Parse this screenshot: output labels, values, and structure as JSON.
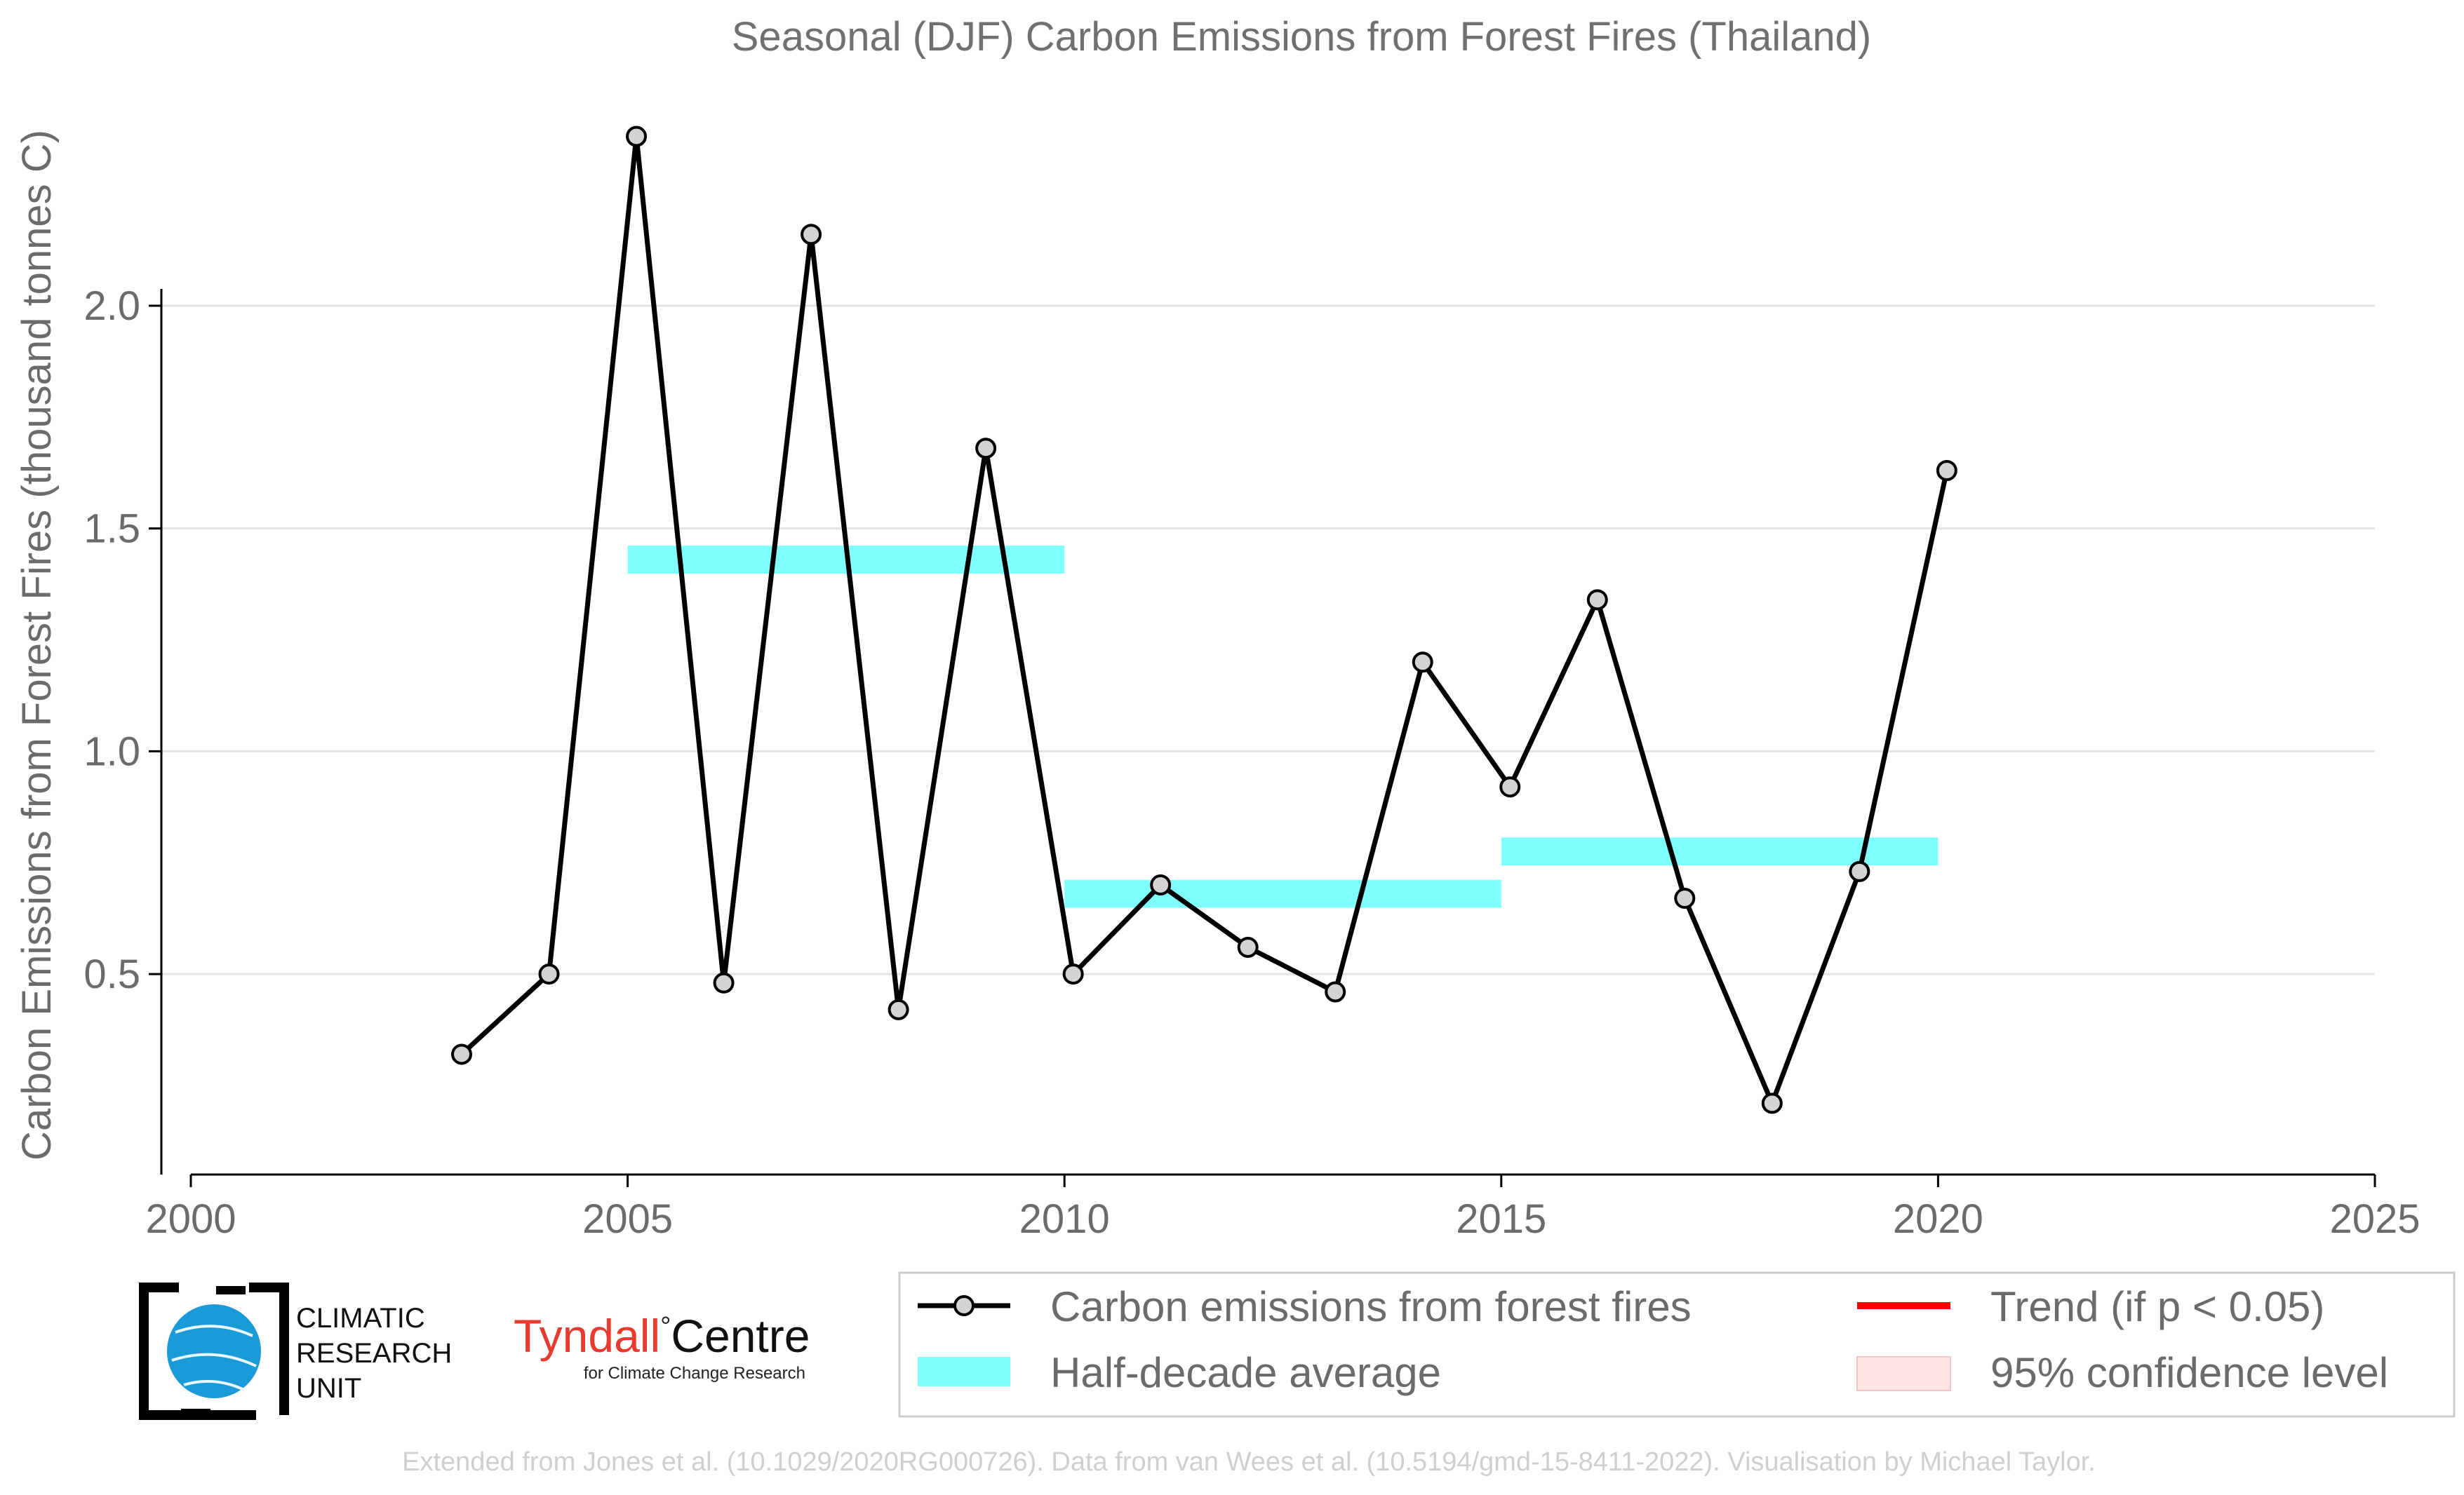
{
  "chart_data": {
    "type": "line",
    "title": "Seasonal (DJF) Carbon Emissions from Forest Fires (Thailand)",
    "xlabel": "",
    "ylabel": "Carbon Emissions from Forest Fires (thousand tonnes C)",
    "xlim": [
      2000,
      2025
    ],
    "ylim": [
      0.05,
      2.45
    ],
    "x_ticks": [
      2000,
      2005,
      2010,
      2015,
      2020,
      2025
    ],
    "y_ticks": [
      0.5,
      1.0,
      1.5,
      2.0
    ],
    "y_tick_labels": [
      "0.5",
      "1.0",
      "1.5",
      "2.0"
    ],
    "grid": true,
    "series": [
      {
        "name": "Carbon emissions from forest fires",
        "color": "#000000",
        "marker_fill": "#d3d3d3",
        "x": [
          2003.1,
          2004.1,
          2005.1,
          2006.1,
          2007.1,
          2008.1,
          2009.1,
          2010.1,
          2011.1,
          2012.1,
          2013.1,
          2014.1,
          2015.1,
          2016.1,
          2017.1,
          2018.1,
          2019.1,
          2020.1
        ],
        "y": [
          0.32,
          0.5,
          2.38,
          0.48,
          2.16,
          0.42,
          1.68,
          0.5,
          0.7,
          0.56,
          0.46,
          1.2,
          0.92,
          1.34,
          0.67,
          0.21,
          0.73,
          1.63
        ]
      }
    ],
    "half_decade_average": {
      "name": "Half-decade average",
      "color": "#80ffff",
      "segments": [
        {
          "x_start": 2005.0,
          "x_end": 2010.0,
          "y": 1.43
        },
        {
          "x_start": 2010.0,
          "x_end": 2015.0,
          "y": 0.68
        },
        {
          "x_start": 2015.0,
          "x_end": 2020.0,
          "y": 0.775
        }
      ]
    },
    "legend": {
      "placement": "bottom",
      "items": [
        {
          "label": "Carbon emissions from forest fires",
          "kind": "line-marker",
          "color": "#000000"
        },
        {
          "label": "Trend (if p < 0.05)",
          "kind": "line",
          "color": "#ff0000"
        },
        {
          "label": "Half-decade average",
          "kind": "patch",
          "color": "#80ffff"
        },
        {
          "label": "95% confidence level",
          "kind": "patch",
          "color": "#ffe4e6"
        }
      ]
    }
  },
  "logos": {
    "cru_line1": "CLIMATIC",
    "cru_line2": "RESEARCH",
    "cru_line3": "UNIT",
    "tyndall_main": "Tyndall",
    "tyndall_centre": "Centre",
    "tyndall_sub": "for Climate Change Research"
  },
  "credit": "Extended from Jones et al. (10.1029/2020RG000726). Data from van Wees et al. (10.5194/gmd-15-8411-2022). Visualisation by Michael Taylor."
}
